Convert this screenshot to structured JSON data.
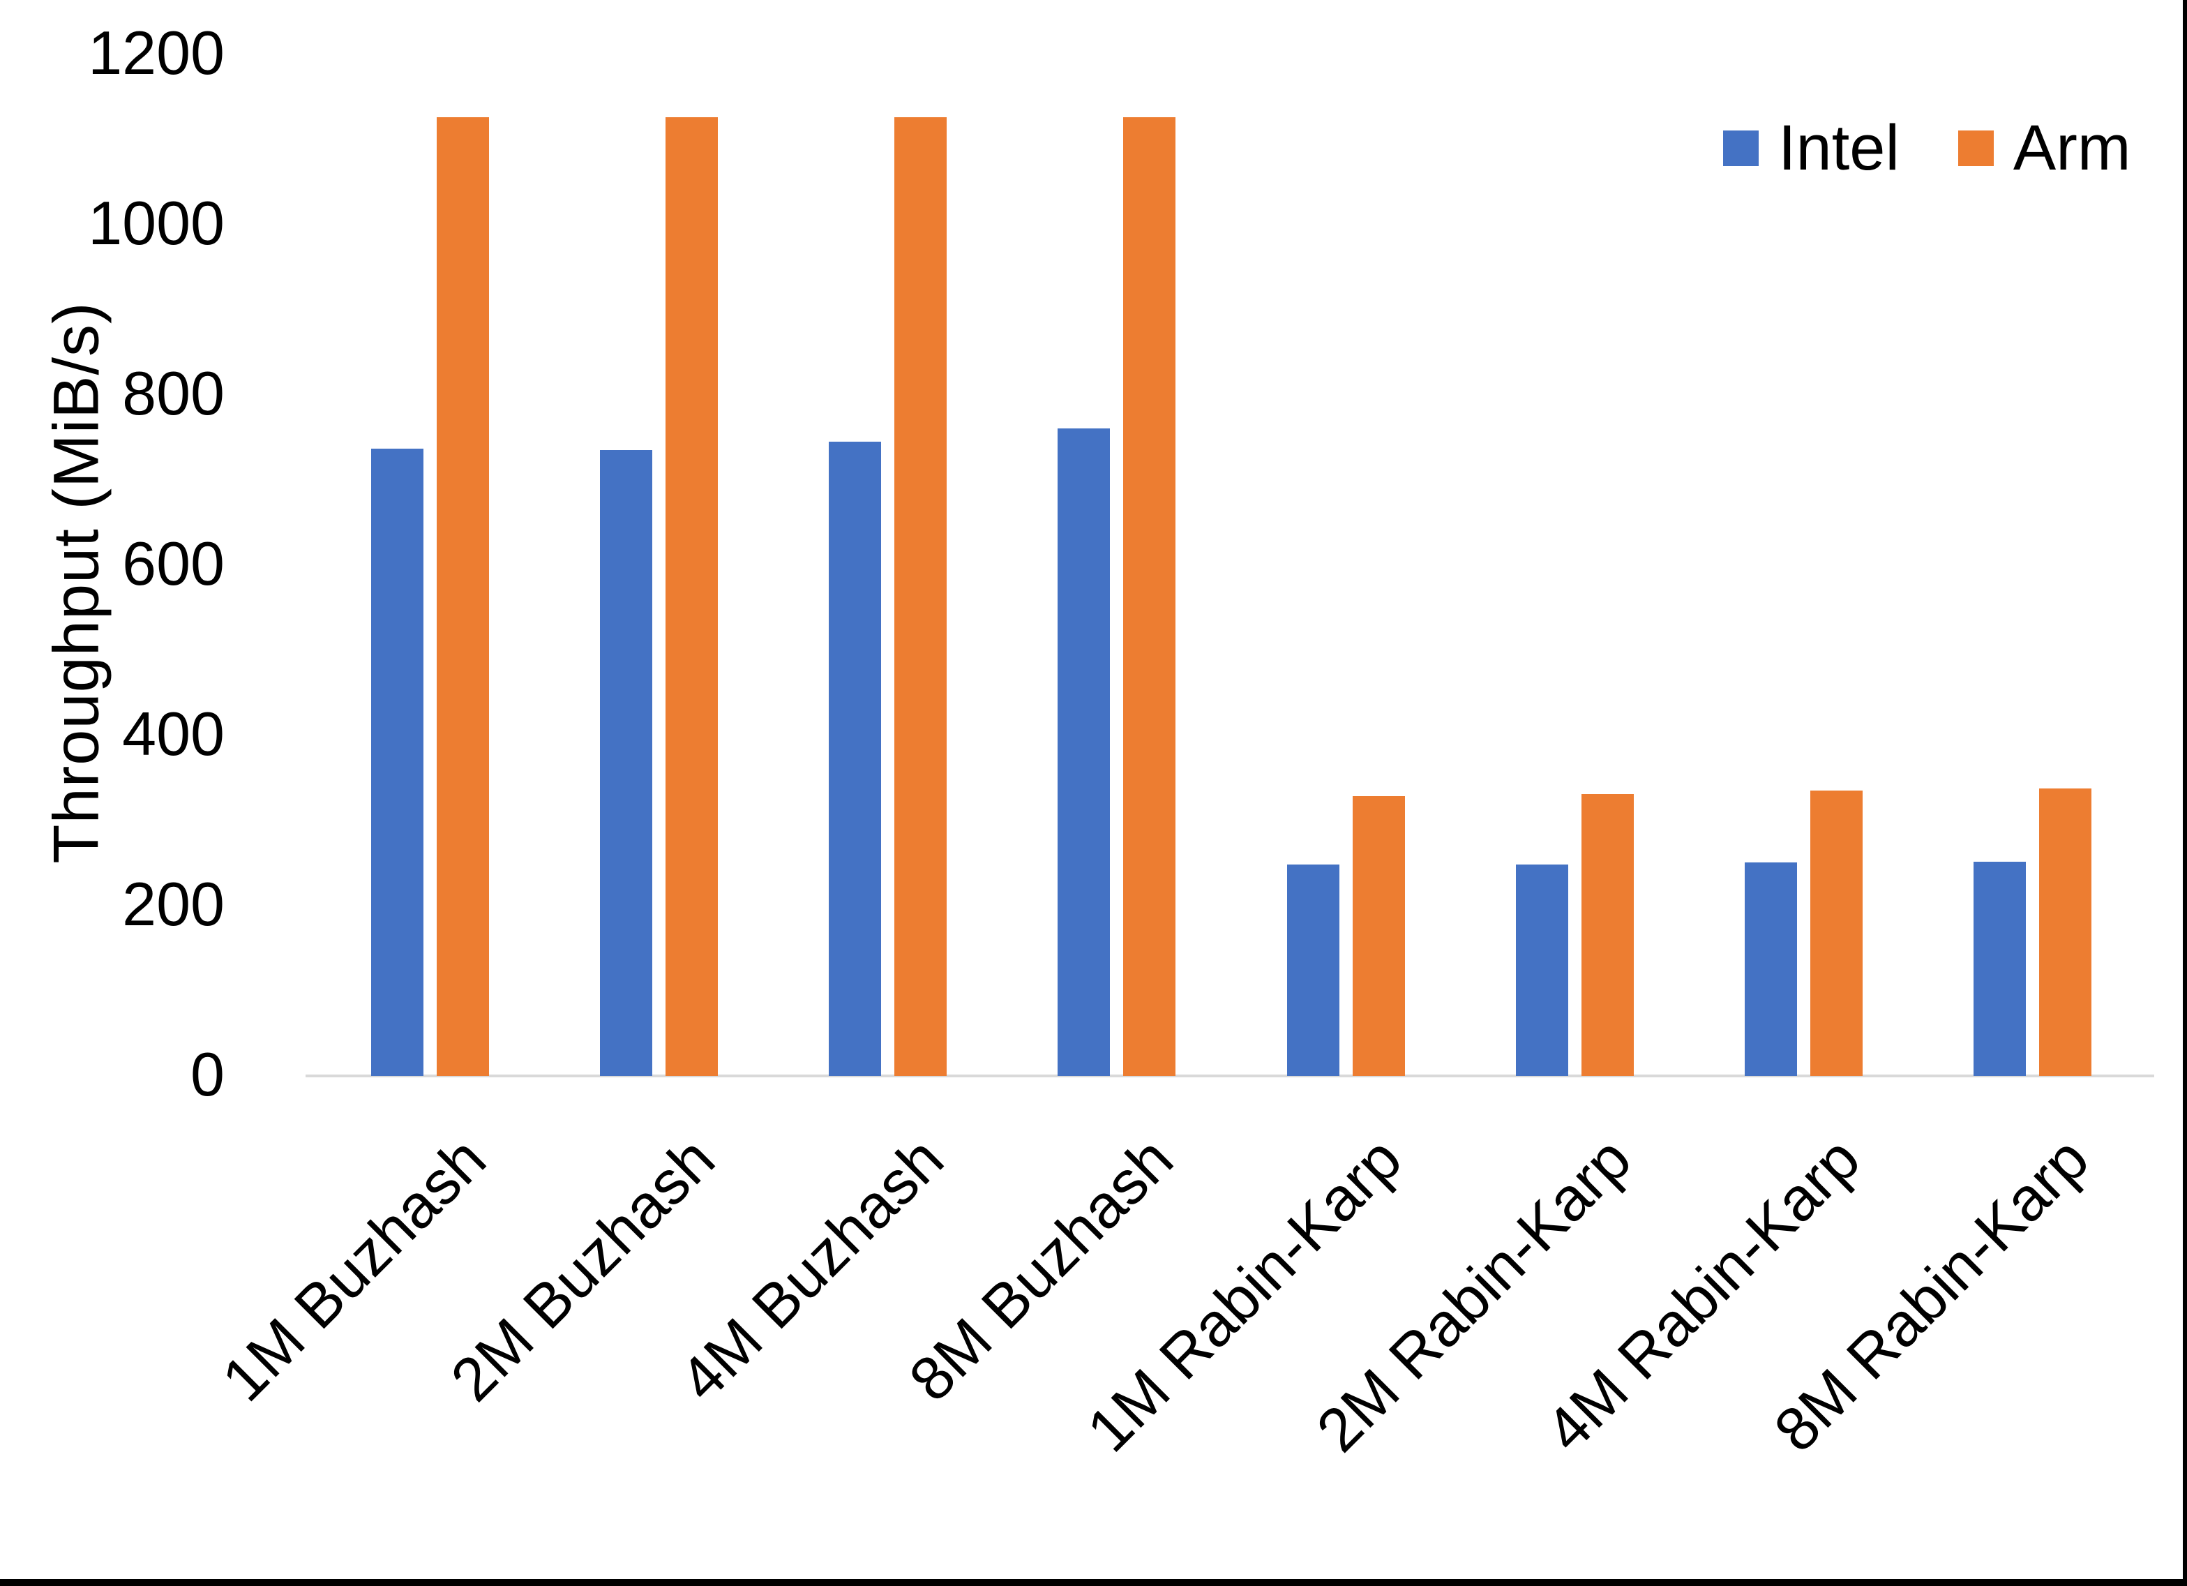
{
  "y_axis": {
    "title": "Throughput (MiB/s)",
    "ticks": [
      "0",
      "200",
      "400",
      "600",
      "800",
      "1000",
      "1200"
    ],
    "tick_values": [
      0,
      200,
      400,
      600,
      800,
      1000,
      1200
    ],
    "axis_line_color": "#D9D9D9"
  },
  "legend": {
    "items": [
      {
        "label": "Intel",
        "color": "#4472C4"
      },
      {
        "label": "Arm",
        "color": "#ED7D31"
      }
    ]
  },
  "chart_data": {
    "type": "bar",
    "title": "",
    "xlabel": "",
    "ylabel": "Throughput (MiB/s)",
    "ylim": [
      0,
      1200
    ],
    "grid": false,
    "legend_position": "top-right",
    "categories": [
      "1M Buzhash",
      "2M Buzhash",
      "4M Buzhash",
      "8M Buzhash",
      "1M Rabin-Karp",
      "2M Rabin-Karp",
      "4M Rabin-Karp",
      "8M Rabin-Karp"
    ],
    "series": [
      {
        "name": "Intel",
        "color": "#4472C4",
        "values": [
          737,
          735,
          745,
          761,
          248,
          248,
          251,
          252
        ]
      },
      {
        "name": "Arm",
        "color": "#ED7D31",
        "values": [
          1126,
          1126,
          1126,
          1126,
          329,
          331,
          335,
          338
        ]
      }
    ]
  }
}
